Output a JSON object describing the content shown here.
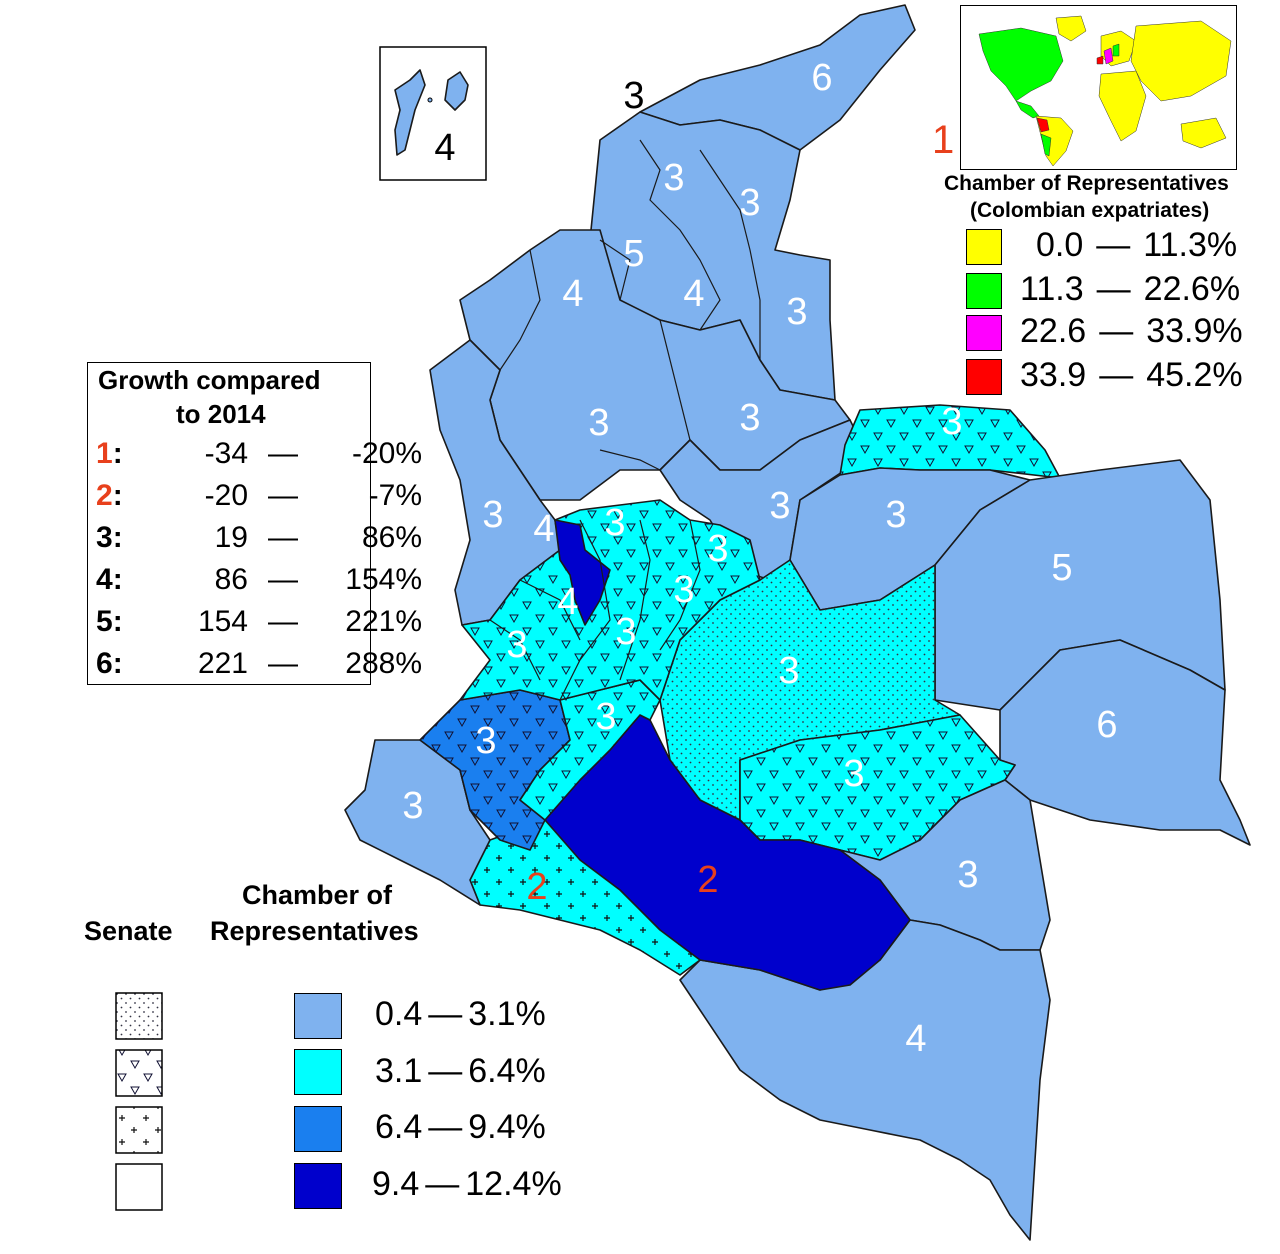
{
  "colors": {
    "band_1": "#7fb2ef",
    "band_2": "#00ffff",
    "band_3": "#1a7fef",
    "band_4": "#0000cc",
    "expat_1": "#ffff00",
    "expat_2": "#00ff00",
    "expat_3": "#ff00ff",
    "expat_4": "#ff0000",
    "growth_orange": "#e8401c"
  },
  "region_labels": {
    "san_andres": "4",
    "guajira": "6",
    "caribbean_coast": "3",
    "atlantico_area": "3",
    "magdalena": "3",
    "bolivar_n": "5",
    "sucre": "4",
    "bolivar_s": "4",
    "cesar": "3",
    "cordoba": "3",
    "bolivar_c": "3",
    "arauca": "3",
    "santander": "3",
    "boyaca": "3",
    "choco": "3",
    "antioquia_w": "4",
    "antioquia_c": "3",
    "cundinamarca": "3",
    "caldas": "3",
    "risaralda": "4",
    "tolima": "3",
    "valle": "3",
    "casanare": "3",
    "vichada": "5",
    "meta": "3",
    "huila": "3",
    "cauca": "3",
    "narino": "3",
    "guainia": "6",
    "guaviare": "3",
    "putumayo": "2",
    "caqueta": "2",
    "vaupes": "3",
    "amazonas": "4"
  },
  "growth_legend": {
    "title_line1": "Growth compared",
    "title_line2": "to 2014",
    "rows": [
      {
        "key": "1",
        "low": "-34",
        "dash": "—",
        "high": "-20%"
      },
      {
        "key": "2",
        "low": "-20",
        "dash": "—",
        "high": "-7%"
      },
      {
        "key": "3",
        "low": "19",
        "dash": "—",
        "high": "86%"
      },
      {
        "key": "4",
        "low": "86",
        "dash": "—",
        "high": "154%"
      },
      {
        "key": "5",
        "low": "154",
        "dash": "—",
        "high": "221%"
      },
      {
        "key": "6",
        "low": "221",
        "dash": "—",
        "high": "288%"
      }
    ]
  },
  "expat_inset": {
    "growth_key": "1",
    "title_line1": "Chamber of Representatives",
    "title_line2": "(Colombian expatriates)",
    "rows": [
      {
        "low": "0.0",
        "high": "11.3%"
      },
      {
        "low": "11.3",
        "high": "22.6%"
      },
      {
        "low": "22.6",
        "high": "33.9%"
      },
      {
        "low": "33.9",
        "high": "45.2%"
      }
    ]
  },
  "main_legend": {
    "senate_label": "Senate",
    "chamber_label_line1": "Chamber of",
    "chamber_label_line2": "Representatives",
    "rows": [
      {
        "low": "0.4",
        "high": "3.1%"
      },
      {
        "low": "3.1",
        "high": "6.4%"
      },
      {
        "low": "6.4",
        "high": "9.4%"
      },
      {
        "low": "9.4",
        "high": "12.4%"
      }
    ]
  }
}
